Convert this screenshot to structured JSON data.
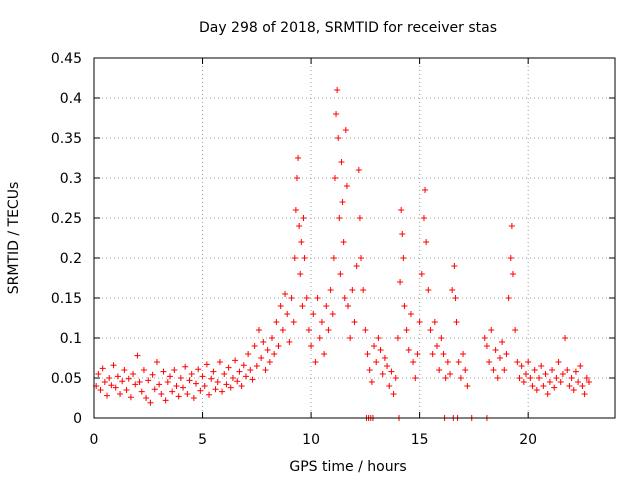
{
  "chart_data": {
    "type": "scatter",
    "title": "Day 298 of 2018, SRMTID for receiver stas",
    "xlabel": "GPS time / hours",
    "ylabel": "SRMTID / TECUs",
    "xlim": [
      0,
      24
    ],
    "ylim": [
      0,
      0.45
    ],
    "x_ticks": [
      0,
      5,
      10,
      15,
      20
    ],
    "x_tick_labels": [
      "0",
      "5",
      "10",
      "15",
      "20"
    ],
    "y_ticks": [
      0,
      0.05,
      0.1,
      0.15,
      0.2,
      0.25,
      0.3,
      0.35,
      0.4,
      0.45
    ],
    "y_tick_labels": [
      "0",
      "0.05",
      "0.1",
      "0.15",
      "0.2",
      "0.25",
      "0.3",
      "0.35",
      "0.4",
      "0.45"
    ],
    "grid": true,
    "marker": "plus",
    "colors": {
      "series": "#ff0000",
      "grid": "#a0a0a0",
      "axis": "#000000"
    },
    "series": [
      {
        "name": "SRMTID",
        "points": [
          [
            0.1,
            0.04
          ],
          [
            0.2,
            0.055
          ],
          [
            0.3,
            0.035
          ],
          [
            0.4,
            0.062
          ],
          [
            0.5,
            0.045
          ],
          [
            0.6,
            0.028
          ],
          [
            0.7,
            0.05
          ],
          [
            0.8,
            0.041
          ],
          [
            0.9,
            0.066
          ],
          [
            1.0,
            0.038
          ],
          [
            1.1,
            0.052
          ],
          [
            1.2,
            0.03
          ],
          [
            1.3,
            0.046
          ],
          [
            1.4,
            0.06
          ],
          [
            1.5,
            0.035
          ],
          [
            1.6,
            0.049
          ],
          [
            1.7,
            0.026
          ],
          [
            1.8,
            0.055
          ],
          [
            1.9,
            0.042
          ],
          [
            2.0,
            0.078
          ],
          [
            2.1,
            0.045
          ],
          [
            2.2,
            0.033
          ],
          [
            2.3,
            0.06
          ],
          [
            2.4,
            0.025
          ],
          [
            2.5,
            0.047
          ],
          [
            2.6,
            0.019
          ],
          [
            2.7,
            0.054
          ],
          [
            2.8,
            0.036
          ],
          [
            2.9,
            0.07
          ],
          [
            3.0,
            0.042
          ],
          [
            3.1,
            0.03
          ],
          [
            3.2,
            0.058
          ],
          [
            3.3,
            0.022
          ],
          [
            3.4,
            0.045
          ],
          [
            3.5,
            0.052
          ],
          [
            3.6,
            0.033
          ],
          [
            3.7,
            0.06
          ],
          [
            3.8,
            0.04
          ],
          [
            3.9,
            0.027
          ],
          [
            4.0,
            0.05
          ],
          [
            4.1,
            0.038
          ],
          [
            4.2,
            0.064
          ],
          [
            4.3,
            0.03
          ],
          [
            4.4,
            0.047
          ],
          [
            4.5,
            0.055
          ],
          [
            4.6,
            0.025
          ],
          [
            4.7,
            0.043
          ],
          [
            4.8,
            0.061
          ],
          [
            4.9,
            0.034
          ],
          [
            5.0,
            0.052
          ],
          [
            5.1,
            0.04
          ],
          [
            5.2,
            0.067
          ],
          [
            5.3,
            0.029
          ],
          [
            5.4,
            0.049
          ],
          [
            5.5,
            0.058
          ],
          [
            5.6,
            0.036
          ],
          [
            5.7,
            0.045
          ],
          [
            5.8,
            0.07
          ],
          [
            5.9,
            0.033
          ],
          [
            6.0,
            0.055
          ],
          [
            6.1,
            0.042
          ],
          [
            6.2,
            0.063
          ],
          [
            6.3,
            0.038
          ],
          [
            6.4,
            0.05
          ],
          [
            6.5,
            0.072
          ],
          [
            6.6,
            0.046
          ],
          [
            6.7,
            0.058
          ],
          [
            6.8,
            0.04
          ],
          [
            6.9,
            0.066
          ],
          [
            7.0,
            0.052
          ],
          [
            7.1,
            0.08
          ],
          [
            7.2,
            0.06
          ],
          [
            7.3,
            0.048
          ],
          [
            7.4,
            0.09
          ],
          [
            7.5,
            0.065
          ],
          [
            7.6,
            0.11
          ],
          [
            7.7,
            0.075
          ],
          [
            7.8,
            0.095
          ],
          [
            7.9,
            0.06
          ],
          [
            8.0,
            0.085
          ],
          [
            8.1,
            0.07
          ],
          [
            8.2,
            0.1
          ],
          [
            8.3,
            0.08
          ],
          [
            8.4,
            0.12
          ],
          [
            8.5,
            0.09
          ],
          [
            8.6,
            0.14
          ],
          [
            8.7,
            0.11
          ],
          [
            8.8,
            0.155
          ],
          [
            8.9,
            0.13
          ],
          [
            9.0,
            0.095
          ],
          [
            9.1,
            0.15
          ],
          [
            9.2,
            0.12
          ],
          [
            9.25,
            0.2
          ],
          [
            9.3,
            0.26
          ],
          [
            9.35,
            0.3
          ],
          [
            9.4,
            0.325
          ],
          [
            9.45,
            0.24
          ],
          [
            9.5,
            0.18
          ],
          [
            9.55,
            0.22
          ],
          [
            9.6,
            0.14
          ],
          [
            9.65,
            0.25
          ],
          [
            9.7,
            0.2
          ],
          [
            9.8,
            0.15
          ],
          [
            9.9,
            0.11
          ],
          [
            10.0,
            0.09
          ],
          [
            10.1,
            0.13
          ],
          [
            10.2,
            0.07
          ],
          [
            10.3,
            0.15
          ],
          [
            10.4,
            0.1
          ],
          [
            10.5,
            0.12
          ],
          [
            10.6,
            0.08
          ],
          [
            10.7,
            0.14
          ],
          [
            10.8,
            0.11
          ],
          [
            10.9,
            0.16
          ],
          [
            11.0,
            0.13
          ],
          [
            11.05,
            0.2
          ],
          [
            11.1,
            0.3
          ],
          [
            11.15,
            0.38
          ],
          [
            11.2,
            0.41
          ],
          [
            11.25,
            0.35
          ],
          [
            11.3,
            0.25
          ],
          [
            11.35,
            0.18
          ],
          [
            11.4,
            0.32
          ],
          [
            11.45,
            0.27
          ],
          [
            11.5,
            0.22
          ],
          [
            11.55,
            0.15
          ],
          [
            11.6,
            0.36
          ],
          [
            11.65,
            0.29
          ],
          [
            11.7,
            0.14
          ],
          [
            11.8,
            0.1
          ],
          [
            11.9,
            0.16
          ],
          [
            12.0,
            0.12
          ],
          [
            12.1,
            0.19
          ],
          [
            12.2,
            0.31
          ],
          [
            12.25,
            0.25
          ],
          [
            12.3,
            0.2
          ],
          [
            12.4,
            0.16
          ],
          [
            12.5,
            0.11
          ],
          [
            12.6,
            0.08
          ],
          [
            12.7,
            0.06
          ],
          [
            12.8,
            0.045
          ],
          [
            12.9,
            0.09
          ],
          [
            13.0,
            0.07
          ],
          [
            13.1,
            0.1
          ],
          [
            13.2,
            0.085
          ],
          [
            13.3,
            0.055
          ],
          [
            13.4,
            0.075
          ],
          [
            13.5,
            0.065
          ],
          [
            13.6,
            0.04
          ],
          [
            13.7,
            0.058
          ],
          [
            13.8,
            0.03
          ],
          [
            13.9,
            0.05
          ],
          [
            14.0,
            0.1
          ],
          [
            14.1,
            0.17
          ],
          [
            14.15,
            0.26
          ],
          [
            14.2,
            0.23
          ],
          [
            14.25,
            0.2
          ],
          [
            14.3,
            0.14
          ],
          [
            14.4,
            0.11
          ],
          [
            14.5,
            0.085
          ],
          [
            14.6,
            0.13
          ],
          [
            14.7,
            0.07
          ],
          [
            14.8,
            0.05
          ],
          [
            14.9,
            0.08
          ],
          [
            15.0,
            0.12
          ],
          [
            15.1,
            0.18
          ],
          [
            15.2,
            0.25
          ],
          [
            15.25,
            0.285
          ],
          [
            15.3,
            0.22
          ],
          [
            15.4,
            0.16
          ],
          [
            15.5,
            0.11
          ],
          [
            15.6,
            0.08
          ],
          [
            15.7,
            0.12
          ],
          [
            15.8,
            0.09
          ],
          [
            15.9,
            0.06
          ],
          [
            16.0,
            0.1
          ],
          [
            16.1,
            0.08
          ],
          [
            16.2,
            0.05
          ],
          [
            16.3,
            0.07
          ],
          [
            16.4,
            0.055
          ],
          [
            16.5,
            0.16
          ],
          [
            16.6,
            0.19
          ],
          [
            16.65,
            0.15
          ],
          [
            16.7,
            0.12
          ],
          [
            16.8,
            0.07
          ],
          [
            16.9,
            0.05
          ],
          [
            17.0,
            0.08
          ],
          [
            17.1,
            0.06
          ],
          [
            17.2,
            0.04
          ],
          [
            18.0,
            0.1
          ],
          [
            18.1,
            0.09
          ],
          [
            18.2,
            0.07
          ],
          [
            18.3,
            0.11
          ],
          [
            18.4,
            0.06
          ],
          [
            18.5,
            0.085
          ],
          [
            18.6,
            0.05
          ],
          [
            18.7,
            0.075
          ],
          [
            18.8,
            0.095
          ],
          [
            18.9,
            0.06
          ],
          [
            19.0,
            0.08
          ],
          [
            19.1,
            0.15
          ],
          [
            19.2,
            0.2
          ],
          [
            19.25,
            0.24
          ],
          [
            19.3,
            0.18
          ],
          [
            19.4,
            0.11
          ],
          [
            19.5,
            0.07
          ],
          [
            19.6,
            0.05
          ],
          [
            19.7,
            0.065
          ],
          [
            19.8,
            0.045
          ],
          [
            19.9,
            0.055
          ],
          [
            20.0,
            0.07
          ],
          [
            20.1,
            0.05
          ],
          [
            20.2,
            0.04
          ],
          [
            20.3,
            0.06
          ],
          [
            20.4,
            0.035
          ],
          [
            20.5,
            0.05
          ],
          [
            20.6,
            0.065
          ],
          [
            20.7,
            0.04
          ],
          [
            20.8,
            0.055
          ],
          [
            20.9,
            0.03
          ],
          [
            21.0,
            0.045
          ],
          [
            21.1,
            0.06
          ],
          [
            21.2,
            0.038
          ],
          [
            21.3,
            0.05
          ],
          [
            21.4,
            0.07
          ],
          [
            21.5,
            0.045
          ],
          [
            21.6,
            0.055
          ],
          [
            21.7,
            0.1
          ],
          [
            21.8,
            0.06
          ],
          [
            21.9,
            0.04
          ],
          [
            22.0,
            0.05
          ],
          [
            22.1,
            0.035
          ],
          [
            22.2,
            0.058
          ],
          [
            22.3,
            0.045
          ],
          [
            22.4,
            0.065
          ],
          [
            22.5,
            0.04
          ],
          [
            22.6,
            0.03
          ],
          [
            22.7,
            0.05
          ],
          [
            22.8,
            0.045
          ],
          [
            12.55,
            0.0
          ],
          [
            12.65,
            0.0
          ],
          [
            12.75,
            0.0
          ],
          [
            12.85,
            0.0
          ],
          [
            14.05,
            0.0
          ],
          [
            16.15,
            0.0
          ],
          [
            16.55,
            0.0
          ],
          [
            16.75,
            0.0
          ],
          [
            17.4,
            0.0
          ],
          [
            18.1,
            0.0
          ]
        ]
      }
    ]
  }
}
